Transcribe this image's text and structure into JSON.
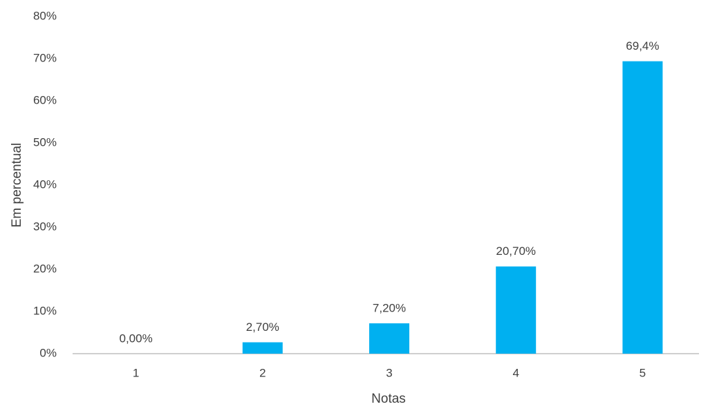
{
  "chart_data": {
    "type": "bar",
    "x_label": "Notas",
    "y_label": "Em percentual",
    "categories": [
      "1",
      "2",
      "3",
      "4",
      "5"
    ],
    "values": [
      0,
      2.7,
      7.2,
      20.7,
      69.4
    ],
    "value_labels": [
      "0,00%",
      "2,70%",
      "7,20%",
      "20,70%",
      "69,4%"
    ],
    "color": "#00b0f0",
    "ylim": [
      0,
      80
    ],
    "yticks": [
      {
        "value": 0,
        "label": "0%"
      },
      {
        "value": 10,
        "label": "10%"
      },
      {
        "value": 20,
        "label": "20%"
      },
      {
        "value": 30,
        "label": "30%"
      },
      {
        "value": 40,
        "label": "40%"
      },
      {
        "value": 50,
        "label": "50%"
      },
      {
        "value": 60,
        "label": "60%"
      },
      {
        "value": 70,
        "label": "70%"
      },
      {
        "value": 80,
        "label": "80%"
      }
    ],
    "grid": false
  }
}
